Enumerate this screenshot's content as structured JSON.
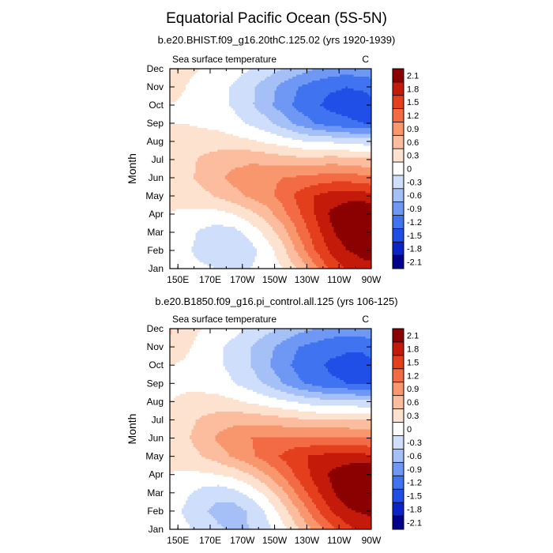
{
  "title": "Equatorial Pacific Ocean (5S-5N)",
  "colors": [
    "#00008b",
    "#0a24c8",
    "#1f4fe6",
    "#3f73f0",
    "#6f97f4",
    "#a5bff7",
    "#cfdefa",
    "#ffffff",
    "#fde2d0",
    "#fbbd9d",
    "#f8966d",
    "#f26b45",
    "#e43f1d",
    "#c41a0a",
    "#8b0000"
  ],
  "colorbar_labels": [
    "2.1",
    "1.8",
    "1.5",
    "1.2",
    "0.9",
    "0.6",
    "0.3",
    "0",
    "-0.3",
    "-0.6",
    "-0.9",
    "-1.2",
    "-1.5",
    "-1.8",
    "-2.1"
  ],
  "chart_data": [
    {
      "type": "heatmap",
      "title": "b.e20.BHIST.f09_g16.20thC.125.02 (yrs 1920-1939)",
      "left_label": "Sea surface temperature",
      "right_label": "C",
      "xlabel": "",
      "ylabel": "Month",
      "x_ticks": [
        "150E",
        "170E",
        "170W",
        "150W",
        "130W",
        "110W",
        "90W"
      ],
      "x_tick_lon": [
        150,
        170,
        190,
        210,
        230,
        250,
        270
      ],
      "y_ticks": [
        "Jan",
        "Feb",
        "Mar",
        "Apr",
        "May",
        "Jun",
        "Jul",
        "Aug",
        "Sep",
        "Oct",
        "Nov",
        "Dec"
      ],
      "xlim": [
        145,
        270
      ],
      "contour_levels": [
        -2.1,
        -1.8,
        -1.5,
        -1.2,
        -0.9,
        -0.6,
        -0.3,
        0,
        0.3,
        0.6,
        0.9,
        1.2,
        1.5,
        1.8,
        2.1
      ],
      "lon": [
        145,
        155,
        165,
        175,
        185,
        195,
        205,
        215,
        225,
        235,
        245,
        255,
        265,
        270
      ],
      "values": [
        [
          -0.15,
          -0.2,
          -0.25,
          -0.3,
          -0.3,
          -0.3,
          -0.2,
          0.0,
          0.35,
          0.8,
          1.3,
          1.55,
          1.7,
          1.6
        ],
        [
          -0.15,
          -0.25,
          -0.4,
          -0.5,
          -0.55,
          -0.4,
          -0.15,
          0.2,
          0.7,
          1.2,
          1.55,
          1.8,
          1.9,
          2.0
        ],
        [
          -0.1,
          -0.2,
          -0.35,
          -0.45,
          -0.4,
          -0.2,
          0.1,
          0.45,
          0.95,
          1.35,
          1.75,
          2.0,
          2.15,
          2.2
        ],
        [
          0.0,
          -0.05,
          -0.1,
          -0.1,
          0.0,
          0.2,
          0.45,
          0.8,
          1.15,
          1.5,
          1.85,
          2.0,
          2.15,
          2.1
        ],
        [
          0.05,
          0.1,
          0.2,
          0.35,
          0.5,
          0.65,
          0.8,
          1.0,
          1.3,
          1.5,
          1.65,
          1.7,
          1.65,
          1.6
        ],
        [
          0.05,
          0.2,
          0.4,
          0.55,
          0.7,
          0.75,
          0.85,
          0.9,
          0.95,
          1.0,
          1.05,
          1.05,
          1.0,
          0.95
        ],
        [
          0.05,
          0.2,
          0.35,
          0.45,
          0.5,
          0.55,
          0.5,
          0.45,
          0.4,
          0.4,
          0.45,
          0.4,
          0.35,
          0.35
        ],
        [
          0.0,
          0.1,
          0.15,
          0.15,
          0.1,
          0.05,
          -0.05,
          -0.15,
          -0.25,
          -0.35,
          -0.35,
          -0.4,
          -0.45,
          -0.45
        ],
        [
          0.0,
          0.0,
          -0.05,
          -0.1,
          -0.2,
          -0.35,
          -0.5,
          -0.75,
          -1.0,
          -1.2,
          -1.35,
          -1.45,
          -1.5,
          -1.5
        ],
        [
          0.0,
          -0.05,
          -0.1,
          -0.2,
          -0.35,
          -0.55,
          -0.8,
          -1.05,
          -1.3,
          -1.45,
          -1.6,
          -1.6,
          -1.65,
          -1.6
        ],
        [
          0.1,
          0.0,
          -0.1,
          -0.2,
          -0.35,
          -0.55,
          -0.75,
          -1.0,
          -1.2,
          -1.35,
          -1.45,
          -1.5,
          -1.45,
          -1.4
        ],
        [
          0.1,
          0.05,
          0.0,
          -0.05,
          -0.15,
          -0.3,
          -0.45,
          -0.6,
          -0.75,
          -0.9,
          -1.0,
          -1.05,
          -1.0,
          -1.0
        ]
      ]
    },
    {
      "type": "heatmap",
      "title": "b.e20.B1850.f09_g16.pi_control.all.125 (yrs 106-125)",
      "left_label": "Sea surface temperature",
      "right_label": "C",
      "xlabel": "",
      "ylabel": "Month",
      "x_ticks": [
        "150E",
        "170E",
        "170W",
        "150W",
        "130W",
        "110W",
        "90W"
      ],
      "x_tick_lon": [
        150,
        170,
        190,
        210,
        230,
        250,
        270
      ],
      "y_ticks": [
        "Jan",
        "Feb",
        "Mar",
        "Apr",
        "May",
        "Jun",
        "Jul",
        "Aug",
        "Sep",
        "Oct",
        "Nov",
        "Dec"
      ],
      "xlim": [
        145,
        270
      ],
      "contour_levels": [
        -2.1,
        -1.8,
        -1.5,
        -1.2,
        -0.9,
        -0.6,
        -0.3,
        0,
        0.3,
        0.6,
        0.9,
        1.2,
        1.5,
        1.8,
        2.1
      ],
      "lon": [
        145,
        155,
        165,
        175,
        185,
        195,
        205,
        215,
        225,
        235,
        245,
        255,
        265,
        270
      ],
      "values": [
        [
          -0.15,
          -0.25,
          -0.4,
          -0.55,
          -0.65,
          -0.6,
          -0.4,
          -0.1,
          0.3,
          0.7,
          1.1,
          1.4,
          1.6,
          1.5
        ],
        [
          -0.2,
          -0.35,
          -0.55,
          -0.7,
          -0.75,
          -0.55,
          -0.25,
          0.15,
          0.6,
          1.1,
          1.5,
          1.75,
          1.85,
          1.9
        ],
        [
          -0.1,
          -0.25,
          -0.4,
          -0.5,
          -0.4,
          -0.2,
          0.1,
          0.5,
          1.0,
          1.4,
          1.75,
          2.0,
          2.15,
          2.2
        ],
        [
          0.0,
          -0.05,
          -0.05,
          0.0,
          0.1,
          0.3,
          0.6,
          0.95,
          1.3,
          1.6,
          1.85,
          2.05,
          2.2,
          2.15
        ],
        [
          0.05,
          0.15,
          0.3,
          0.45,
          0.65,
          0.85,
          1.05,
          1.25,
          1.45,
          1.55,
          1.6,
          1.6,
          1.6,
          1.55
        ],
        [
          0.05,
          0.25,
          0.45,
          0.65,
          0.8,
          0.9,
          0.95,
          0.95,
          0.95,
          0.95,
          0.95,
          0.95,
          0.9,
          0.9
        ],
        [
          0.05,
          0.2,
          0.35,
          0.45,
          0.5,
          0.5,
          0.45,
          0.4,
          0.35,
          0.3,
          0.3,
          0.3,
          0.3,
          0.3
        ],
        [
          0.0,
          0.05,
          0.1,
          0.1,
          0.05,
          -0.05,
          -0.15,
          -0.25,
          -0.35,
          -0.45,
          -0.5,
          -0.5,
          -0.55,
          -0.55
        ],
        [
          -0.05,
          -0.05,
          -0.1,
          -0.15,
          -0.3,
          -0.45,
          -0.65,
          -0.9,
          -1.15,
          -1.3,
          -1.45,
          -1.5,
          -1.55,
          -1.5
        ],
        [
          0.0,
          -0.05,
          -0.15,
          -0.25,
          -0.4,
          -0.6,
          -0.85,
          -1.1,
          -1.3,
          -1.45,
          -1.55,
          -1.6,
          -1.6,
          -1.55
        ],
        [
          0.25,
          0.05,
          -0.1,
          -0.25,
          -0.4,
          -0.6,
          -0.8,
          -1.0,
          -1.2,
          -1.3,
          -1.4,
          -1.45,
          -1.45,
          -1.4
        ],
        [
          0.35,
          0.1,
          0.0,
          -0.1,
          -0.2,
          -0.35,
          -0.5,
          -0.65,
          -0.8,
          -0.9,
          -1.0,
          -1.0,
          -1.0,
          -0.95
        ]
      ]
    }
  ]
}
